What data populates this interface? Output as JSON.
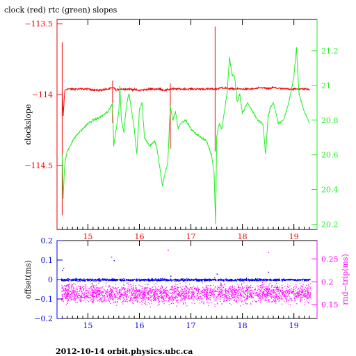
{
  "title": "clock (red) rtc (green) slopes",
  "footer": "2012-10-14 orbit.physics.ubc.ca",
  "colors": {
    "red": "#ee0000",
    "green": "#22ee22",
    "blue": "#0000ee",
    "magenta": "#ff00ff",
    "axis": "#000000"
  },
  "chart_data": [
    {
      "type": "line",
      "title": "clock (red) rtc (green) slopes",
      "xlim": [
        14.4,
        19.45
      ],
      "x_ticks": [
        "15",
        "16",
        "17",
        "18",
        "19"
      ],
      "x_tick_values": [
        15,
        16,
        17,
        18,
        19
      ],
      "left_axis": {
        "label": "clockslope",
        "ylim": [
          -114.95,
          -113.47
        ],
        "ticks": [
          {
            "value": -113.5,
            "label": "−113.5"
          },
          {
            "value": -114,
            "label": "−114"
          },
          {
            "value": -114.5,
            "label": "−114.5"
          }
        ]
      },
      "right_axis": {
        "label": "",
        "ylim": [
          20.17,
          21.38
        ],
        "ticks": [
          {
            "value": 21.2,
            "label": "21.2"
          },
          {
            "value": 21,
            "label": "21"
          },
          {
            "value": 20.8,
            "label": "20.8"
          },
          {
            "value": 20.6,
            "label": "20.6"
          },
          {
            "value": 20.4,
            "label": "20.4"
          },
          {
            "value": 20.2,
            "label": "20.2"
          }
        ]
      },
      "series": [
        {
          "name": "clock",
          "color": "red",
          "axis": "left",
          "x": [
            14.5,
            14.52,
            14.55,
            14.6,
            14.8,
            15.0,
            15.2,
            15.4,
            15.5,
            15.55,
            15.6,
            15.8,
            16.0,
            16.2,
            16.4,
            16.5,
            16.6,
            16.8,
            17.0,
            17.2,
            17.4,
            17.47,
            17.5,
            17.6,
            17.8,
            18.0,
            18.2,
            18.4,
            18.5,
            18.6,
            18.8,
            19.0,
            19.2,
            19.3
          ],
          "y": [
            -113.98,
            -114.15,
            -113.97,
            -113.96,
            -113.96,
            -113.96,
            -113.97,
            -113.96,
            -113.95,
            -113.97,
            -113.96,
            -113.96,
            -113.97,
            -113.96,
            -113.96,
            -113.97,
            -113.96,
            -113.96,
            -113.96,
            -113.96,
            -113.96,
            -113.96,
            -113.96,
            -113.95,
            -113.96,
            -113.96,
            -113.96,
            -113.95,
            -113.96,
            -113.95,
            -113.96,
            -113.96,
            -113.96,
            -113.96
          ]
        },
        {
          "name": "rtc",
          "color": "green",
          "axis": "right",
          "x": [
            14.5,
            14.52,
            14.55,
            14.6,
            14.7,
            14.8,
            14.9,
            15.0,
            15.1,
            15.2,
            15.3,
            15.4,
            15.45,
            15.48,
            15.5,
            15.55,
            15.6,
            15.62,
            15.65,
            15.7,
            15.75,
            15.8,
            15.85,
            15.9,
            15.95,
            16.0,
            16.05,
            16.1,
            16.2,
            16.3,
            16.35,
            16.45,
            16.5,
            16.55,
            16.6,
            16.65,
            16.7,
            16.75,
            16.8,
            16.9,
            17.0,
            17.1,
            17.2,
            17.3,
            17.4,
            17.45,
            17.48,
            17.5,
            17.55,
            17.6,
            17.65,
            17.7,
            17.75,
            17.8,
            17.85,
            17.9,
            17.95,
            18.0,
            18.1,
            18.2,
            18.3,
            18.4,
            18.45,
            18.5,
            18.55,
            18.6,
            18.7,
            18.8,
            18.9,
            19.0,
            19.05,
            19.1,
            19.15,
            19.2,
            19.25,
            19.3
          ],
          "y": [
            20.6,
            20.35,
            20.55,
            20.62,
            20.68,
            20.72,
            20.75,
            20.78,
            20.8,
            20.81,
            20.83,
            20.85,
            20.88,
            20.9,
            20.65,
            20.75,
            20.85,
            21.0,
            20.8,
            20.73,
            20.9,
            20.95,
            20.85,
            20.75,
            20.6,
            20.86,
            20.9,
            20.7,
            20.65,
            20.68,
            20.62,
            20.42,
            20.5,
            20.55,
            20.88,
            20.8,
            20.85,
            20.75,
            20.78,
            20.8,
            20.75,
            20.72,
            20.7,
            20.68,
            20.6,
            20.5,
            20.2,
            20.7,
            20.78,
            20.75,
            20.85,
            20.95,
            21.16,
            21.06,
            21.05,
            20.9,
            20.95,
            20.84,
            20.9,
            20.85,
            20.8,
            20.78,
            20.6,
            20.82,
            20.88,
            20.9,
            20.78,
            20.8,
            20.9,
            21.05,
            21.22,
            20.95,
            20.9,
            20.85,
            20.82,
            20.78
          ]
        }
      ]
    },
    {
      "type": "scatter",
      "xlim": [
        14.4,
        19.45
      ],
      "x_ticks": [
        "15",
        "16",
        "17",
        "18",
        "19"
      ],
      "x_tick_values": [
        15,
        16,
        17,
        18,
        19
      ],
      "left_axis": {
        "label": "offset(ms)",
        "ylim": [
          -0.2,
          0.2
        ],
        "ticks": [
          {
            "value": 0.2,
            "label": "0.2"
          },
          {
            "value": 0.1,
            "label": "0.1"
          },
          {
            "value": 0,
            "label": "0"
          },
          {
            "value": -0.1,
            "label": "−0.1"
          },
          {
            "value": -0.2,
            "label": "−0.2"
          }
        ]
      },
      "right_axis": {
        "label": "rnd−trip(ms)",
        "ylim": [
          0.12,
          0.29
        ],
        "ticks": [
          {
            "value": 0.25,
            "label": "0.25"
          },
          {
            "value": 0.2,
            "label": "0.2"
          },
          {
            "value": 0.15,
            "label": "0.15"
          }
        ]
      },
      "series": [
        {
          "name": "offset",
          "color": "blue",
          "axis": "left",
          "x_range": [
            14.48,
            19.32
          ],
          "center": 0.0,
          "spread": 0.01,
          "outliers": [
            [
              14.5,
              0.05
            ],
            [
              15.5,
              0.1
            ],
            [
              16.1,
              -0.04
            ],
            [
              16.6,
              0.02
            ],
            [
              17.5,
              0.03
            ],
            [
              18.5,
              0.04
            ]
          ]
        },
        {
          "name": "rnd-trip",
          "color": "magenta",
          "axis": "right",
          "x_range": [
            14.48,
            19.32
          ],
          "center": 0.175,
          "spread": 0.035,
          "outliers": [
            [
              15.45,
              0.255
            ],
            [
              16.55,
              0.27
            ],
            [
              17.45,
              0.21
            ],
            [
              18.5,
              0.265
            ],
            [
              14.52,
              0.23
            ]
          ]
        }
      ]
    }
  ]
}
